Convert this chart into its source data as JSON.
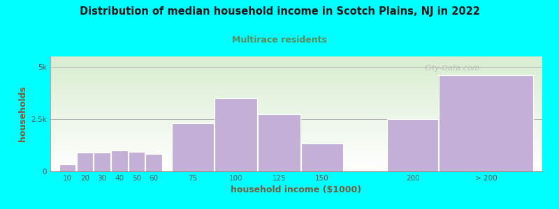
{
  "title": "Distribution of median household income in Scotch Plains, NJ in 2022",
  "subtitle": "Multirace residents",
  "xlabel": "household income ($1000)",
  "ylabel": "households",
  "background_color": "#00FFFF",
  "plot_bg_top_left": "#deefd8",
  "plot_bg_bottom_right": "#ffffff",
  "bar_color": "#c4afd6",
  "bar_edge_color": "#ffffff",
  "title_color": "#1a1a1a",
  "subtitle_color": "#5c8a5c",
  "axis_label_color": "#7a5c3a",
  "tick_label_color": "#555555",
  "watermark": "City-Data.com",
  "categories": [
    "10",
    "20",
    "30",
    "40",
    "50",
    "60",
    "75",
    "100",
    "125",
    "150",
    "200",
    "> 200"
  ],
  "values": [
    350,
    900,
    900,
    1000,
    950,
    850,
    2300,
    3500,
    2750,
    1350,
    2500,
    4600
  ],
  "bar_lefts": [
    10,
    20,
    30,
    40,
    50,
    60,
    75,
    100,
    125,
    150,
    200,
    230
  ],
  "bar_widths": [
    10,
    10,
    10,
    10,
    10,
    10,
    25,
    25,
    25,
    25,
    30,
    55
  ],
  "yticks": [
    0,
    2500,
    5000
  ],
  "ytick_labels": [
    "0",
    "2.5k",
    "5k"
  ],
  "ylim": [
    0,
    5500
  ],
  "xlim": [
    5,
    290
  ]
}
